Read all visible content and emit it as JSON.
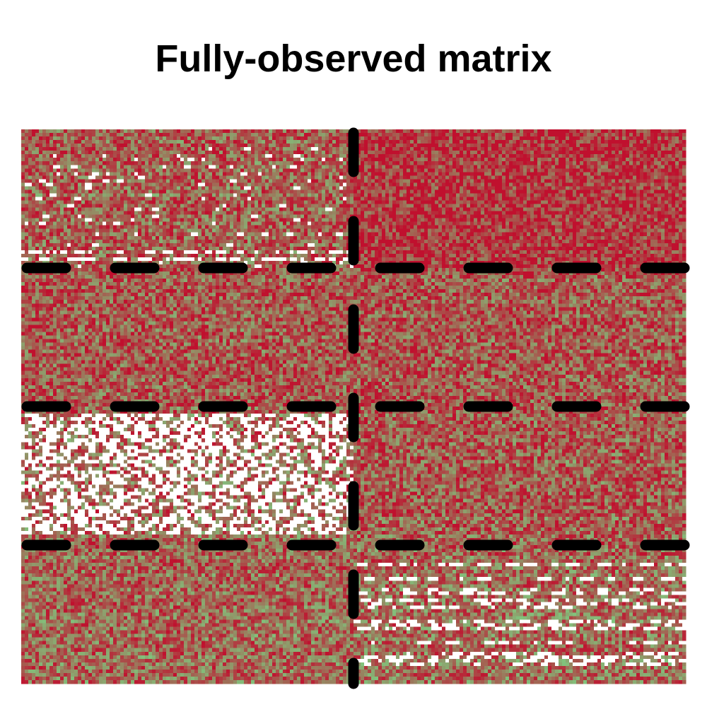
{
  "chart_data": {
    "type": "heatmap",
    "title": "Fully-observed matrix",
    "xlabel": "",
    "ylabel": "",
    "legend": "none",
    "grid": false,
    "colors": {
      "low": "#7fc97f",
      "high": "#c0102e",
      "missing": "#ffffff",
      "separator": "#000000"
    },
    "n_rows": 156,
    "n_cols": 188,
    "column_blocks": [
      {
        "start_col": 0,
        "end_col": 93
      },
      {
        "start_col": 94,
        "end_col": 187
      }
    ],
    "row_blocks": [
      {
        "start_row": 0,
        "end_row": 38
      },
      {
        "start_row": 39,
        "end_row": 77
      },
      {
        "start_row": 78,
        "end_row": 116
      },
      {
        "start_row": 117,
        "end_row": 155
      }
    ],
    "block_mean_level": [
      [
        0.58,
        0.8
      ],
      [
        0.62,
        0.62
      ],
      [
        0.55,
        0.6
      ],
      [
        0.55,
        0.52
      ]
    ],
    "missing_regions": [
      {
        "row_start": 0,
        "row_end": 38,
        "col_start": 0,
        "col_end": 93,
        "missing_fraction": 0.06,
        "pattern": "sparse"
      },
      {
        "row_start": 33,
        "row_end": 36,
        "col_start": 0,
        "col_end": 93,
        "missing_fraction": 0.45,
        "pattern": "rows"
      },
      {
        "row_start": 80,
        "row_end": 113,
        "col_start": 0,
        "col_end": 93,
        "missing_fraction": 0.42,
        "pattern": "dense"
      },
      {
        "row_start": 122,
        "row_end": 155,
        "col_start": 94,
        "col_end": 187,
        "missing_fraction": 0.25,
        "pattern": "rows"
      }
    ]
  }
}
